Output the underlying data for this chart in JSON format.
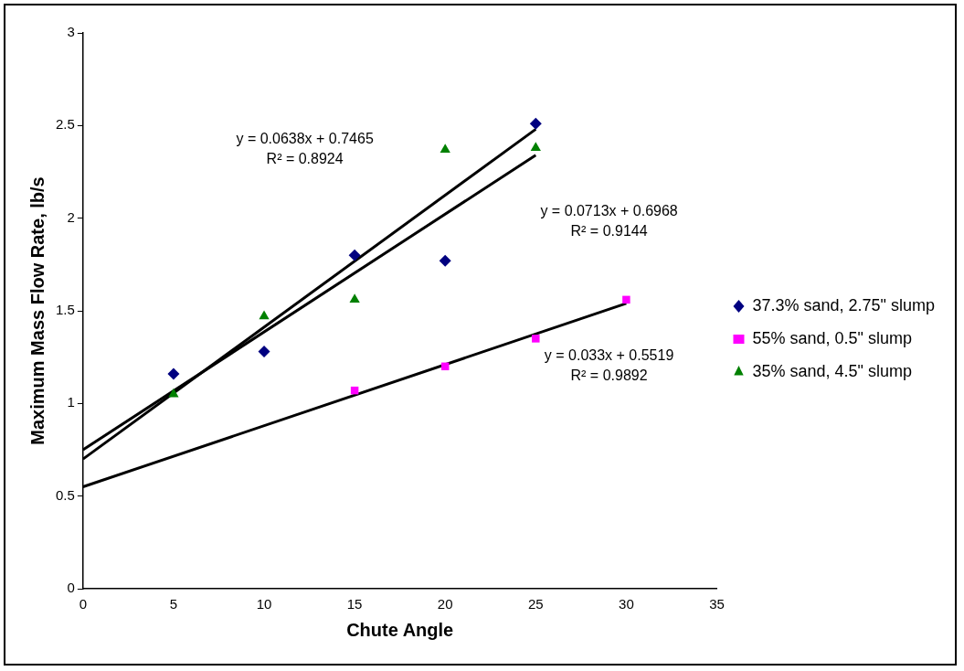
{
  "chart_data": {
    "type": "scatter",
    "xlabel": "Chute Angle",
    "ylabel": "Maximum Mass Flow Rate, lb/s",
    "xlim": [
      0,
      35
    ],
    "xticks": [
      0,
      5,
      10,
      15,
      20,
      25,
      30,
      35
    ],
    "ylim": [
      0,
      3
    ],
    "yticks": [
      0,
      0.5,
      1,
      1.5,
      2,
      2.5,
      3
    ],
    "grid": false,
    "legend": "right",
    "series": [
      {
        "name": "37.3% sand, 2.75\" slump",
        "color": "#000080",
        "marker": "diamond",
        "x": [
          5,
          10,
          15,
          20,
          25
        ],
        "values": [
          1.16,
          1.28,
          1.8,
          1.77,
          2.51
        ]
      },
      {
        "name": "55% sand, 0.5\" slump",
        "color": "#ff00ff",
        "marker": "square",
        "x": [
          15,
          20,
          25,
          30
        ],
        "values": [
          1.07,
          1.2,
          1.35,
          1.56
        ]
      },
      {
        "name": "35% sand, 4.5\" slump",
        "color": "#008000",
        "marker": "triangle",
        "x": [
          5,
          10,
          15,
          20,
          25
        ],
        "values": [
          1.05,
          1.47,
          1.56,
          2.37,
          2.38
        ]
      },
      {
        "type": "line",
        "color": "#000000",
        "marker": "none",
        "x": [
          0,
          25
        ],
        "values": [
          0.75,
          2.34
        ]
      },
      {
        "type": "line",
        "color": "#000000",
        "marker": "none",
        "x": [
          0,
          25
        ],
        "values": [
          0.7,
          2.48
        ]
      },
      {
        "type": "line",
        "color": "#000000",
        "marker": "none",
        "x": [
          0,
          30
        ],
        "values": [
          0.55,
          1.54
        ]
      }
    ],
    "annotations": [
      "y = 0.0638x + 0.7465\nR² = 0.8924",
      "y = 0.0713x + 0.6968\nR² = 0.9144",
      "y = 0.033x + 0.5519\nR² = 0.9892"
    ]
  }
}
